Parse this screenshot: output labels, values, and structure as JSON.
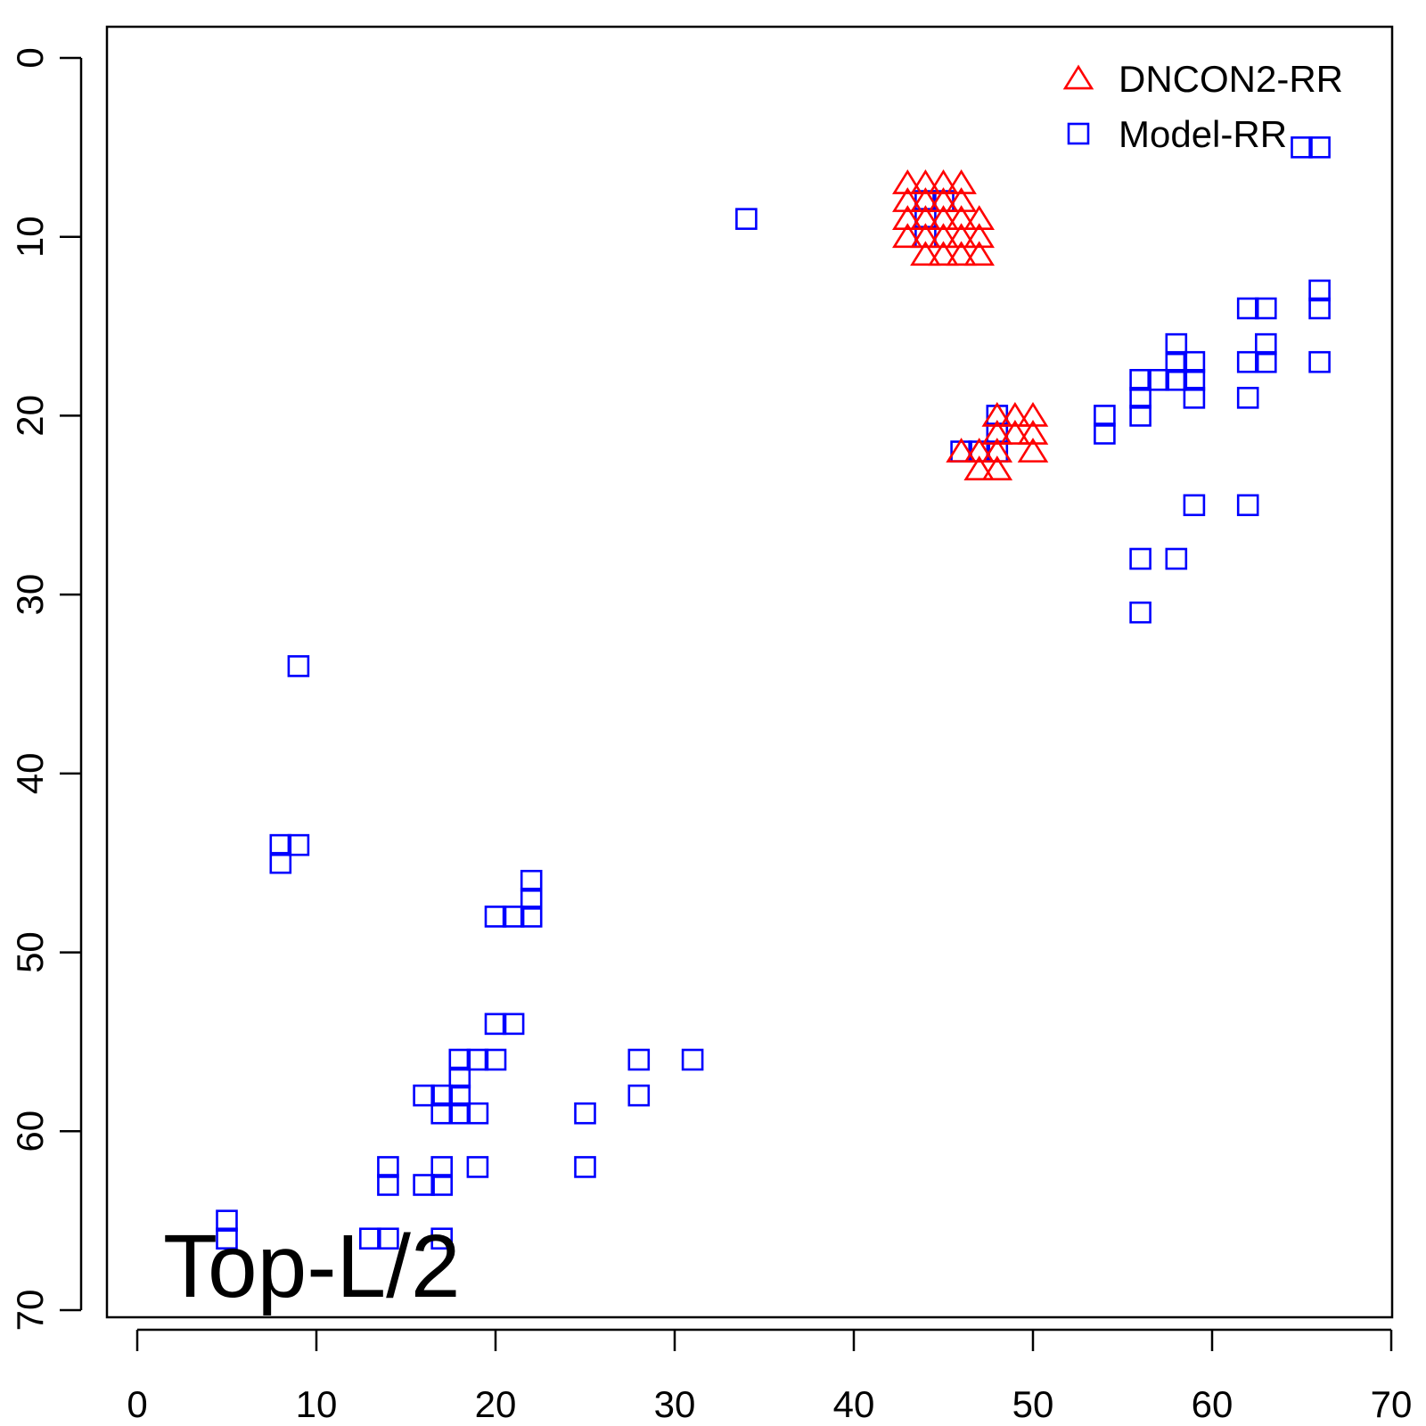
{
  "chart_data": {
    "type": "scatter",
    "panel_label": "Top-L/2",
    "xlim": [
      0,
      70
    ],
    "ylim": [
      0,
      70
    ],
    "y_reversed": true,
    "x_ticks": [
      0,
      10,
      20,
      30,
      40,
      50,
      60,
      70
    ],
    "y_ticks": [
      0,
      10,
      20,
      30,
      40,
      50,
      60,
      70
    ],
    "x_tick_labels": [
      "0",
      "10",
      "20",
      "30",
      "40",
      "50",
      "60",
      "70"
    ],
    "y_tick_labels": [
      "0",
      "10",
      "20",
      "30",
      "40",
      "50",
      "60",
      "70"
    ],
    "legend_position": "top-right",
    "series": [
      {
        "name": "DNCON2-RR",
        "marker": "triangle",
        "color": "#ff0000",
        "points": [
          [
            43,
            7
          ],
          [
            44,
            7
          ],
          [
            45,
            7
          ],
          [
            46,
            7
          ],
          [
            43,
            8
          ],
          [
            44,
            8
          ],
          [
            45,
            8
          ],
          [
            46,
            8
          ],
          [
            43,
            9
          ],
          [
            44,
            9
          ],
          [
            45,
            9
          ],
          [
            46,
            9
          ],
          [
            47,
            9
          ],
          [
            43,
            10
          ],
          [
            44,
            10
          ],
          [
            45,
            10
          ],
          [
            46,
            10
          ],
          [
            47,
            10
          ],
          [
            44,
            11
          ],
          [
            45,
            11
          ],
          [
            46,
            11
          ],
          [
            47,
            11
          ],
          [
            48,
            20
          ],
          [
            49,
            20
          ],
          [
            50,
            20
          ],
          [
            48,
            21
          ],
          [
            49,
            21
          ],
          [
            50,
            21
          ],
          [
            46,
            22
          ],
          [
            47,
            22
          ],
          [
            48,
            22
          ],
          [
            50,
            22
          ],
          [
            47,
            23
          ],
          [
            48,
            23
          ]
        ]
      },
      {
        "name": "Model-RR",
        "marker": "square",
        "color": "#0000ff",
        "points": [
          [
            65,
            5
          ],
          [
            66,
            5
          ],
          [
            34,
            9
          ],
          [
            44,
            8
          ],
          [
            45,
            8
          ],
          [
            44,
            9
          ],
          [
            44,
            10
          ],
          [
            66,
            13
          ],
          [
            66,
            14
          ],
          [
            62,
            14
          ],
          [
            63,
            14
          ],
          [
            58,
            16
          ],
          [
            63,
            16
          ],
          [
            58,
            17
          ],
          [
            59,
            17
          ],
          [
            62,
            17
          ],
          [
            63,
            17
          ],
          [
            66,
            17
          ],
          [
            56,
            18
          ],
          [
            57,
            18
          ],
          [
            58,
            18
          ],
          [
            59,
            18
          ],
          [
            56,
            19
          ],
          [
            59,
            19
          ],
          [
            62,
            19
          ],
          [
            54,
            20
          ],
          [
            56,
            20
          ],
          [
            48,
            20
          ],
          [
            54,
            21
          ],
          [
            48,
            21
          ],
          [
            46,
            22
          ],
          [
            47,
            22
          ],
          [
            48,
            22
          ],
          [
            59,
            25
          ],
          [
            62,
            25
          ],
          [
            56,
            28
          ],
          [
            58,
            28
          ],
          [
            56,
            31
          ],
          [
            9,
            34
          ],
          [
            8,
            44
          ],
          [
            9,
            44
          ],
          [
            8,
            45
          ],
          [
            22,
            46
          ],
          [
            22,
            47
          ],
          [
            20,
            48
          ],
          [
            21,
            48
          ],
          [
            22,
            48
          ],
          [
            20,
            54
          ],
          [
            21,
            54
          ],
          [
            18,
            56
          ],
          [
            19,
            56
          ],
          [
            20,
            56
          ],
          [
            28,
            56
          ],
          [
            31,
            56
          ],
          [
            18,
            57
          ],
          [
            16,
            58
          ],
          [
            17,
            58
          ],
          [
            18,
            58
          ],
          [
            28,
            58
          ],
          [
            17,
            59
          ],
          [
            18,
            59
          ],
          [
            19,
            59
          ],
          [
            25,
            59
          ],
          [
            14,
            62
          ],
          [
            17,
            62
          ],
          [
            19,
            62
          ],
          [
            25,
            62
          ],
          [
            14,
            63
          ],
          [
            16,
            63
          ],
          [
            17,
            63
          ],
          [
            5,
            65
          ],
          [
            5,
            66
          ],
          [
            13,
            66
          ],
          [
            14,
            66
          ],
          [
            17,
            66
          ]
        ]
      }
    ]
  }
}
